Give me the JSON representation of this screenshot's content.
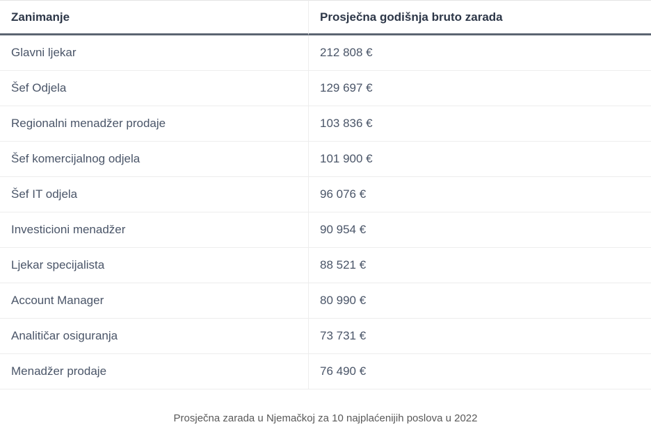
{
  "table": {
    "columns": [
      "Zanimanje",
      "Prosječna godišnja bruto zarada"
    ],
    "rows": [
      {
        "occupation": "Glavni ljekar",
        "salary": "212 808 €"
      },
      {
        "occupation": "Šef Odjela",
        "salary": "129 697 €"
      },
      {
        "occupation": "Regionalni menadžer prodaje",
        "salary": "103 836 €"
      },
      {
        "occupation": "Šef komercijalnog odjela",
        "salary": "101 900 €"
      },
      {
        "occupation": "Šef IT odjela",
        "salary": "96 076 €"
      },
      {
        "occupation": "Investicioni menadžer",
        "salary": "90 954 €"
      },
      {
        "occupation": "Ljekar specijalista",
        "salary": "88 521 €"
      },
      {
        "occupation": "Account Manager",
        "salary": "80 990 €"
      },
      {
        "occupation": "Analitičar osiguranja",
        "salary": "73 731 €"
      },
      {
        "occupation": "Menadžer prodaje",
        "salary": "76 490 €"
      }
    ]
  },
  "caption": "Prosječna zarada u Njemačkoj za 10 najplaćenijih poslova u 2022",
  "colors": {
    "header_text": "#2d3748",
    "body_text": "#4a5568",
    "header_border": "#5b6471",
    "row_border": "#ededed",
    "caption_text": "#595959",
    "background": "#ffffff"
  },
  "chart_data": {
    "type": "table",
    "title": "Prosječna zarada u Njemačkoj za 10 najplaćenijih poslova u 2022",
    "columns": [
      "Zanimanje",
      "Prosječna godišnja bruto zarada"
    ],
    "categories": [
      "Glavni ljekar",
      "Šef Odjela",
      "Regionalni menadžer prodaje",
      "Šef komercijalnog odjela",
      "Šef IT odjela",
      "Investicioni menadžer",
      "Ljekar specijalista",
      "Account Manager",
      "Analitičar osiguranja",
      "Menadžer prodaje"
    ],
    "values": [
      212808,
      129697,
      103836,
      101900,
      96076,
      90954,
      88521,
      80990,
      73731,
      76490
    ],
    "unit": "€",
    "value_format": "space-separated thousands with trailing euro sign",
    "legend_position": "none",
    "grid": "horizontal row separators"
  }
}
